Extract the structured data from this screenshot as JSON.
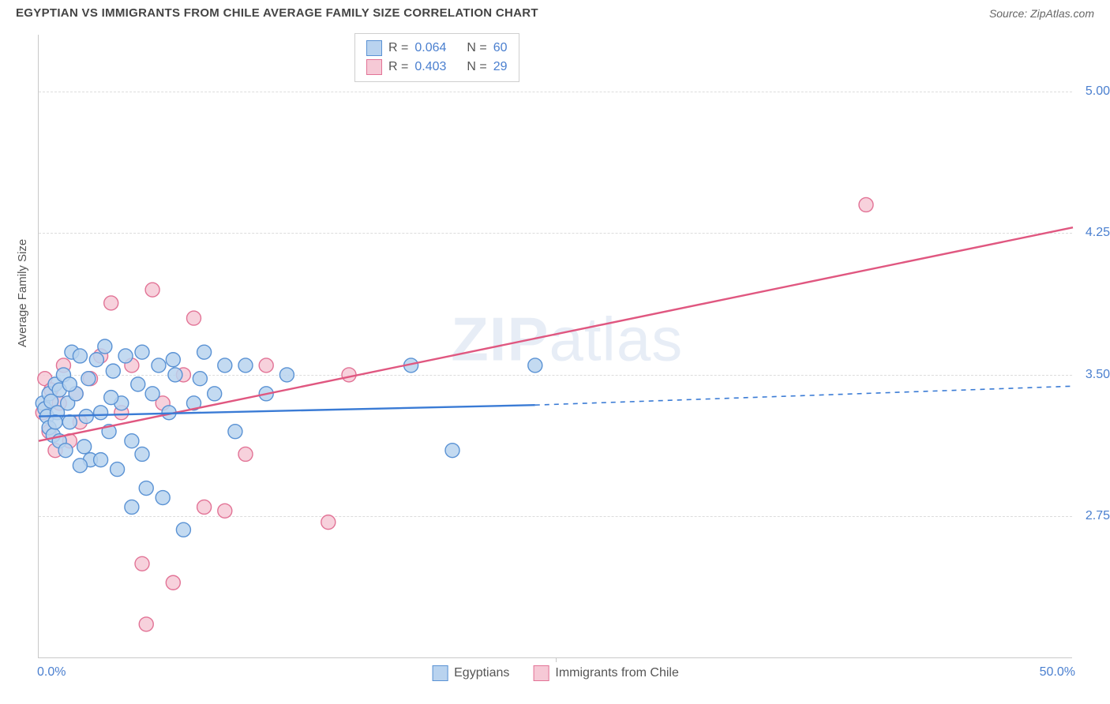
{
  "header": {
    "title": "EGYPTIAN VS IMMIGRANTS FROM CHILE AVERAGE FAMILY SIZE CORRELATION CHART",
    "source": "Source: ZipAtlas.com"
  },
  "chart": {
    "type": "scatter",
    "ylabel": "Average Family Size",
    "xlim": [
      0,
      50
    ],
    "ylim": [
      2.0,
      5.3
    ],
    "yticks": [
      2.75,
      3.5,
      4.25,
      5.0
    ],
    "ytick_labels": [
      "2.75",
      "3.50",
      "4.25",
      "5.00"
    ],
    "xtick_left": "0.0%",
    "xtick_right": "50.0%",
    "x_mid_tick": 25,
    "background_color": "#ffffff",
    "grid_color": "#dcdcdc",
    "marker_radius": 9,
    "marker_stroke_width": 1.4,
    "line_width": 2.4,
    "watermark": "ZIPatlas",
    "series": {
      "egyptians": {
        "label": "Egyptians",
        "fill": "#b9d3ef",
        "stroke": "#5a92d4",
        "line_color": "#3a7bd5",
        "R": "0.064",
        "N": "60",
        "trend": {
          "x1": 0,
          "y1": 3.28,
          "x_solid_end": 24,
          "y_solid_end": 3.34,
          "x2": 50,
          "y2": 3.44
        },
        "points": [
          [
            0.2,
            3.35
          ],
          [
            0.3,
            3.32
          ],
          [
            0.4,
            3.28
          ],
          [
            0.5,
            3.4
          ],
          [
            0.5,
            3.22
          ],
          [
            0.6,
            3.36
          ],
          [
            0.7,
            3.18
          ],
          [
            0.8,
            3.45
          ],
          [
            0.9,
            3.3
          ],
          [
            1.0,
            3.15
          ],
          [
            1.0,
            3.42
          ],
          [
            1.2,
            3.5
          ],
          [
            1.3,
            3.1
          ],
          [
            1.4,
            3.35
          ],
          [
            1.5,
            3.25
          ],
          [
            1.6,
            3.62
          ],
          [
            1.8,
            3.4
          ],
          [
            2.0,
            3.6
          ],
          [
            2.2,
            3.12
          ],
          [
            2.4,
            3.48
          ],
          [
            2.5,
            3.05
          ],
          [
            2.8,
            3.58
          ],
          [
            3.0,
            3.3
          ],
          [
            3.2,
            3.65
          ],
          [
            3.4,
            3.2
          ],
          [
            3.6,
            3.52
          ],
          [
            3.8,
            3.0
          ],
          [
            4.0,
            3.35
          ],
          [
            4.2,
            3.6
          ],
          [
            4.5,
            3.15
          ],
          [
            4.8,
            3.45
          ],
          [
            5.0,
            3.62
          ],
          [
            5.2,
            2.9
          ],
          [
            5.5,
            3.4
          ],
          [
            5.8,
            3.55
          ],
          [
            6.0,
            2.85
          ],
          [
            6.3,
            3.3
          ],
          [
            6.6,
            3.5
          ],
          [
            7.0,
            2.68
          ],
          [
            7.5,
            3.35
          ],
          [
            8.0,
            3.62
          ],
          [
            8.5,
            3.4
          ],
          [
            9.0,
            3.55
          ],
          [
            9.5,
            3.2
          ],
          [
            10.0,
            3.55
          ],
          [
            11.0,
            3.4
          ],
          [
            12.0,
            3.5
          ],
          [
            18.0,
            3.55
          ],
          [
            20.0,
            3.1
          ],
          [
            24.0,
            3.55
          ],
          [
            4.5,
            2.8
          ],
          [
            5.0,
            3.08
          ],
          [
            3.0,
            3.05
          ],
          [
            2.0,
            3.02
          ],
          [
            1.5,
            3.45
          ],
          [
            0.8,
            3.25
          ],
          [
            6.5,
            3.58
          ],
          [
            7.8,
            3.48
          ],
          [
            3.5,
            3.38
          ],
          [
            2.3,
            3.28
          ]
        ]
      },
      "chile": {
        "label": "Immigants from Chile",
        "label_full": "Immigrants from Chile",
        "fill": "#f6c9d6",
        "stroke": "#e27396",
        "line_color": "#e05780",
        "R": "0.403",
        "N": "29",
        "trend": {
          "x1": 0,
          "y1": 3.15,
          "x_solid_end": 50,
          "y_solid_end": 4.28,
          "x2": 50,
          "y2": 4.28
        },
        "points": [
          [
            0.2,
            3.3
          ],
          [
            0.3,
            3.48
          ],
          [
            0.5,
            3.2
          ],
          [
            0.6,
            3.42
          ],
          [
            0.8,
            3.1
          ],
          [
            1.0,
            3.35
          ],
          [
            1.2,
            3.55
          ],
          [
            1.5,
            3.15
          ],
          [
            1.8,
            3.4
          ],
          [
            2.0,
            3.25
          ],
          [
            2.5,
            3.48
          ],
          [
            3.0,
            3.6
          ],
          [
            3.5,
            3.88
          ],
          [
            4.0,
            3.3
          ],
          [
            4.5,
            3.55
          ],
          [
            5.0,
            2.5
          ],
          [
            5.5,
            3.95
          ],
          [
            6.0,
            3.35
          ],
          [
            6.5,
            2.4
          ],
          [
            7.0,
            3.5
          ],
          [
            8.0,
            2.8
          ],
          [
            9.0,
            2.78
          ],
          [
            10.0,
            3.08
          ],
          [
            11.0,
            3.55
          ],
          [
            14.0,
            2.72
          ],
          [
            15.0,
            3.5
          ],
          [
            7.5,
            3.8
          ],
          [
            40.0,
            4.4
          ],
          [
            5.2,
            2.18
          ]
        ]
      }
    }
  },
  "legend_top": {
    "rows": [
      {
        "swatch_fill": "#b9d3ef",
        "swatch_stroke": "#5a92d4",
        "r_label": "R =",
        "r_val": "0.064",
        "n_label": "N =",
        "n_val": "60"
      },
      {
        "swatch_fill": "#f6c9d6",
        "swatch_stroke": "#e27396",
        "r_label": "R =",
        "r_val": "0.403",
        "n_label": "N =",
        "n_val": "29"
      }
    ]
  },
  "legend_bottom": [
    {
      "swatch_fill": "#b9d3ef",
      "swatch_stroke": "#5a92d4",
      "label": "Egyptians"
    },
    {
      "swatch_fill": "#f6c9d6",
      "swatch_stroke": "#e27396",
      "label": "Immigrants from Chile"
    }
  ]
}
